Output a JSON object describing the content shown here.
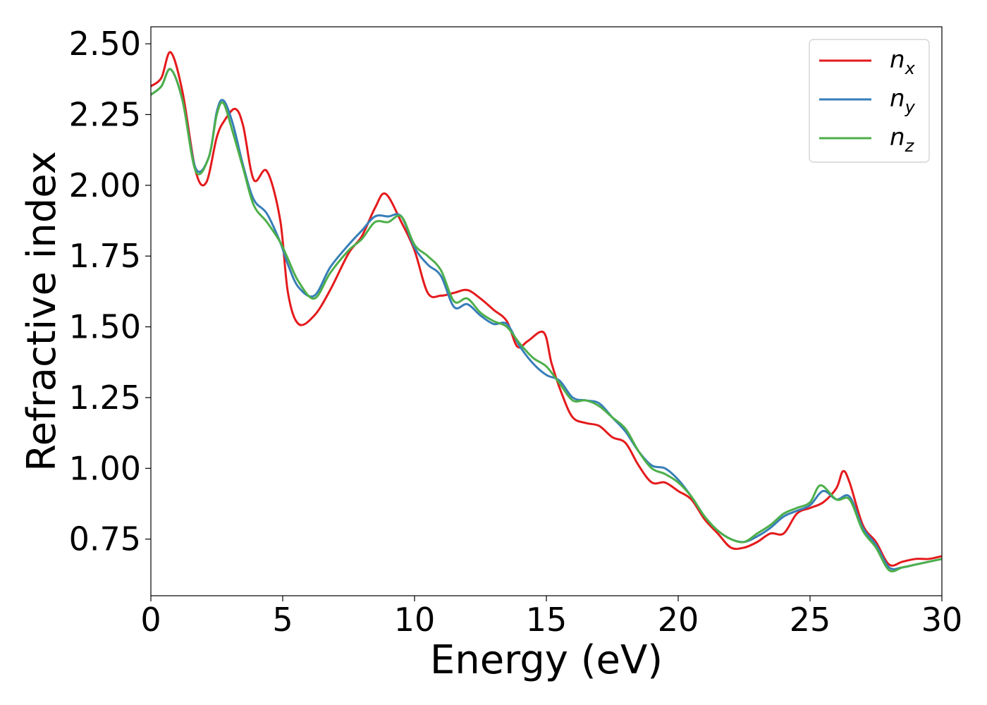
{
  "chart_data": {
    "type": "line",
    "title": "",
    "xlabel": "Energy (eV)",
    "ylabel": "Refractive index",
    "xlim": [
      0,
      30
    ],
    "ylim": [
      0.55,
      2.56
    ],
    "xticks": [
      0,
      5,
      10,
      15,
      20,
      25,
      30
    ],
    "xtick_labels": [
      "0",
      "5",
      "10",
      "15",
      "20",
      "25",
      "30"
    ],
    "yticks": [
      0.75,
      1.0,
      1.25,
      1.5,
      1.75,
      2.0,
      2.25,
      2.5
    ],
    "ytick_labels": [
      "0.75",
      "1.00",
      "1.25",
      "1.50",
      "1.75",
      "2.00",
      "2.25",
      "2.50"
    ],
    "grid": false,
    "legend_position": "top-right",
    "series": [
      {
        "name": "n_x",
        "legend_base": "n",
        "legend_sub": "x",
        "color": "#e41a1c",
        "x": [
          0,
          0.4,
          0.75,
          1.2,
          1.7,
          2.1,
          2.5,
          2.8,
          3.2,
          3.5,
          3.9,
          4.4,
          4.9,
          5.2,
          5.6,
          6.2,
          6.8,
          7.5,
          8.0,
          8.5,
          8.9,
          9.5,
          10.0,
          10.5,
          11.0,
          11.5,
          12.0,
          12.5,
          13.0,
          13.5,
          13.9,
          14.3,
          14.9,
          15.2,
          15.6,
          16.0,
          16.5,
          17.0,
          17.5,
          18.0,
          18.5,
          19.0,
          19.5,
          20.0,
          20.5,
          21.0,
          21.5,
          22.0,
          22.5,
          23.0,
          23.5,
          24.0,
          24.5,
          25.0,
          25.5,
          26.0,
          26.25,
          26.5,
          27.0,
          27.5,
          28.0,
          28.5,
          29.0,
          29.5,
          30.0
        ],
        "y": [
          2.35,
          2.38,
          2.47,
          2.33,
          2.05,
          2.01,
          2.17,
          2.23,
          2.27,
          2.21,
          2.02,
          2.05,
          1.88,
          1.62,
          1.51,
          1.54,
          1.63,
          1.76,
          1.82,
          1.92,
          1.97,
          1.87,
          1.77,
          1.62,
          1.61,
          1.62,
          1.63,
          1.6,
          1.56,
          1.52,
          1.43,
          1.45,
          1.48,
          1.37,
          1.26,
          1.18,
          1.16,
          1.15,
          1.11,
          1.09,
          1.01,
          0.95,
          0.95,
          0.92,
          0.89,
          0.82,
          0.77,
          0.72,
          0.72,
          0.74,
          0.77,
          0.77,
          0.84,
          0.86,
          0.88,
          0.93,
          0.99,
          0.95,
          0.8,
          0.74,
          0.66,
          0.67,
          0.68,
          0.68,
          0.69
        ]
      },
      {
        "name": "n_y",
        "legend_base": "n",
        "legend_sub": "y",
        "color": "#377eb8",
        "x": [
          0,
          0.4,
          0.75,
          1.2,
          1.7,
          2.2,
          2.5,
          2.75,
          3.1,
          3.5,
          3.9,
          4.4,
          4.9,
          5.2,
          5.6,
          6.2,
          6.8,
          7.5,
          8.0,
          8.5,
          9.0,
          9.5,
          10.0,
          10.5,
          11.0,
          11.5,
          12.0,
          12.5,
          13.0,
          13.5,
          14.0,
          14.5,
          15.0,
          15.5,
          16.0,
          16.5,
          17.0,
          17.5,
          18.0,
          18.5,
          19.0,
          19.5,
          20.0,
          20.5,
          21.0,
          21.5,
          22.0,
          22.5,
          23.0,
          23.5,
          24.0,
          24.5,
          25.0,
          25.5,
          26.0,
          26.5,
          27.0,
          27.5,
          28.0,
          28.5,
          29.0,
          29.5,
          30.0
        ],
        "y": [
          2.32,
          2.35,
          2.41,
          2.3,
          2.06,
          2.1,
          2.26,
          2.3,
          2.22,
          2.07,
          1.95,
          1.9,
          1.8,
          1.72,
          1.64,
          1.61,
          1.71,
          1.79,
          1.84,
          1.89,
          1.89,
          1.89,
          1.78,
          1.72,
          1.68,
          1.57,
          1.58,
          1.54,
          1.51,
          1.51,
          1.43,
          1.37,
          1.33,
          1.31,
          1.25,
          1.24,
          1.23,
          1.18,
          1.13,
          1.06,
          1.01,
          1.0,
          0.96,
          0.9,
          0.83,
          0.78,
          0.75,
          0.74,
          0.76,
          0.79,
          0.83,
          0.85,
          0.87,
          0.92,
          0.89,
          0.9,
          0.79,
          0.73,
          0.65,
          0.65,
          0.66,
          0.67,
          0.68
        ]
      },
      {
        "name": "n_z",
        "legend_base": "n",
        "legend_sub": "z",
        "color": "#4daf4a",
        "x": [
          0,
          0.4,
          0.75,
          1.2,
          1.7,
          2.2,
          2.5,
          2.75,
          3.1,
          3.5,
          3.9,
          4.4,
          4.9,
          5.2,
          5.6,
          6.2,
          6.8,
          7.5,
          8.0,
          8.5,
          9.0,
          9.5,
          10.0,
          10.5,
          11.0,
          11.5,
          12.0,
          12.5,
          13.0,
          13.5,
          14.0,
          14.5,
          15.0,
          15.5,
          16.0,
          16.5,
          17.0,
          17.5,
          18.0,
          18.5,
          19.0,
          19.5,
          20.0,
          20.5,
          21.0,
          21.5,
          22.0,
          22.5,
          23.0,
          23.5,
          24.0,
          24.5,
          25.0,
          25.4,
          26.0,
          26.5,
          27.0,
          27.5,
          28.0,
          28.5,
          29.0,
          29.5,
          30.0
        ],
        "y": [
          2.32,
          2.35,
          2.41,
          2.3,
          2.05,
          2.1,
          2.25,
          2.29,
          2.19,
          2.06,
          1.93,
          1.87,
          1.8,
          1.74,
          1.66,
          1.6,
          1.69,
          1.77,
          1.81,
          1.87,
          1.87,
          1.89,
          1.79,
          1.75,
          1.7,
          1.59,
          1.6,
          1.55,
          1.52,
          1.5,
          1.44,
          1.39,
          1.36,
          1.3,
          1.24,
          1.24,
          1.22,
          1.18,
          1.14,
          1.06,
          1.0,
          0.98,
          0.95,
          0.9,
          0.83,
          0.78,
          0.75,
          0.74,
          0.77,
          0.8,
          0.84,
          0.86,
          0.88,
          0.94,
          0.89,
          0.89,
          0.78,
          0.72,
          0.64,
          0.65,
          0.66,
          0.67,
          0.68
        ]
      }
    ]
  }
}
